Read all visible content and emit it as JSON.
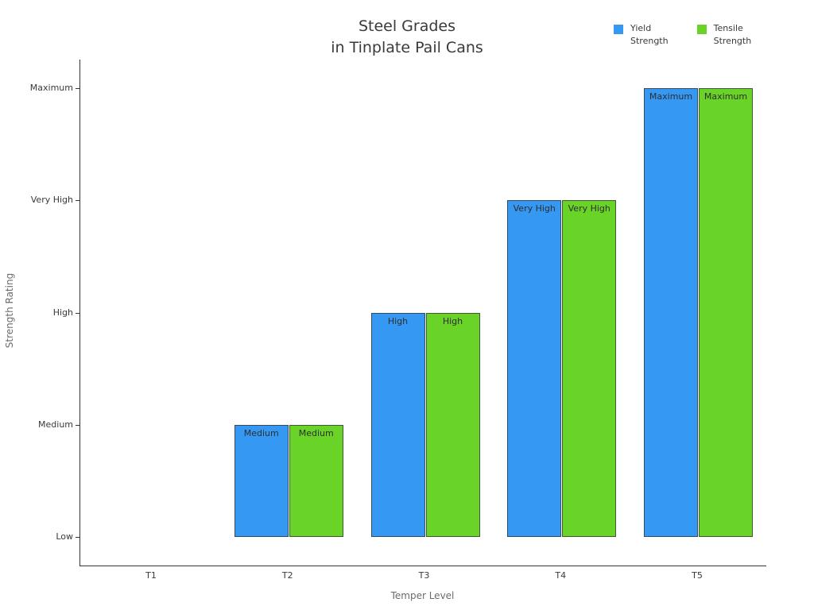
{
  "title": {
    "line1": "Steel Grades",
    "line2": "in Tinplate Pail Cans"
  },
  "legend": {
    "items": [
      {
        "line1": "Yield",
        "line2": "Strength",
        "color": "#3598f2"
      },
      {
        "line1": "Tensile",
        "line2": "Strength",
        "color": "#69d328"
      }
    ]
  },
  "axes": {
    "xlabel": "Temper Level",
    "ylabel": "Strength Rating"
  },
  "chart_data": {
    "type": "bar",
    "title": "Steel Grades in Tinplate Pail Cans",
    "categories": [
      "T1",
      "T2",
      "T3",
      "T4",
      "T5"
    ],
    "xlabel": "Temper Level",
    "ylabel": "Strength Rating",
    "ytick_labels": [
      "Low",
      "Medium",
      "High",
      "Very High",
      "Maximum"
    ],
    "value_scale": {
      "Low": 1,
      "Medium": 2,
      "High": 3,
      "Very High": 4,
      "Maximum": 5
    },
    "baseline": "Low",
    "bar_labels_shown": true,
    "legend_position": "top-right",
    "grid": false,
    "series": [
      {
        "name": "Yield Strength",
        "color": "#3598f2",
        "values": [
          "Low",
          "Medium",
          "High",
          "Very High",
          "Maximum"
        ]
      },
      {
        "name": "Tensile Strength",
        "color": "#69d328",
        "values": [
          "Low",
          "Medium",
          "High",
          "Very High",
          "Maximum"
        ]
      }
    ],
    "colors": {
      "axis": "#333333",
      "background": "#ffffff"
    }
  }
}
